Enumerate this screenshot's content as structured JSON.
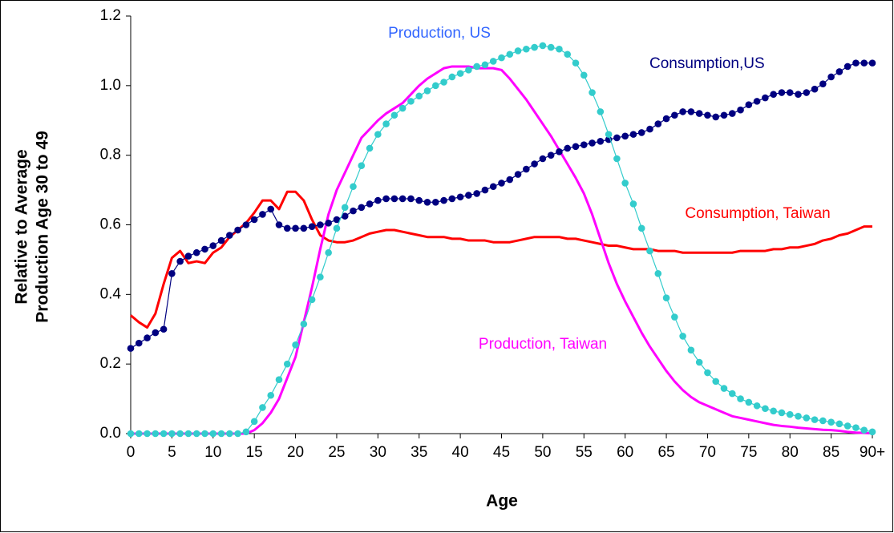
{
  "chart_data": {
    "type": "line",
    "y_label": [
      "Relative to Average",
      "Production Age 30 to 49"
    ],
    "x_label": "Age",
    "x": [
      0,
      1,
      2,
      3,
      4,
      5,
      6,
      7,
      8,
      9,
      10,
      11,
      12,
      13,
      14,
      15,
      16,
      17,
      18,
      19,
      20,
      21,
      22,
      23,
      24,
      25,
      26,
      27,
      28,
      29,
      30,
      31,
      32,
      33,
      34,
      35,
      36,
      37,
      38,
      39,
      40,
      41,
      42,
      43,
      44,
      45,
      46,
      47,
      48,
      49,
      50,
      51,
      52,
      53,
      54,
      55,
      56,
      57,
      58,
      59,
      60,
      61,
      62,
      63,
      64,
      65,
      66,
      67,
      68,
      69,
      70,
      71,
      72,
      73,
      74,
      75,
      76,
      77,
      78,
      79,
      80,
      81,
      82,
      83,
      84,
      85,
      86,
      87,
      88,
      89,
      90
    ],
    "xlim": [
      0,
      90
    ],
    "xticks": [
      0,
      5,
      10,
      15,
      20,
      25,
      30,
      35,
      40,
      45,
      50,
      55,
      60,
      65,
      70,
      75,
      80,
      85,
      {
        "value": 90,
        "label": "90+"
      }
    ],
    "ylim": [
      0,
      1.2
    ],
    "yticks": [
      {
        "value": 0,
        "label": "0.0"
      },
      0.2,
      0.4,
      0.6,
      0.8,
      {
        "value": 1,
        "label": "1.0"
      },
      1.2
    ],
    "series": [
      {
        "name": "Consumption,US",
        "color": "#000080",
        "label_color": "#000080",
        "markers": true,
        "width": 1.2,
        "values": [
          0.245,
          0.26,
          0.275,
          0.29,
          0.3,
          0.46,
          0.495,
          0.51,
          0.52,
          0.53,
          0.54,
          0.555,
          0.57,
          0.585,
          0.6,
          0.615,
          0.63,
          0.645,
          0.6,
          0.59,
          0.59,
          0.59,
          0.595,
          0.6,
          0.605,
          0.615,
          0.625,
          0.64,
          0.65,
          0.66,
          0.67,
          0.675,
          0.675,
          0.675,
          0.675,
          0.67,
          0.665,
          0.665,
          0.67,
          0.675,
          0.68,
          0.685,
          0.69,
          0.7,
          0.71,
          0.72,
          0.73,
          0.745,
          0.76,
          0.775,
          0.79,
          0.8,
          0.81,
          0.82,
          0.825,
          0.83,
          0.835,
          0.84,
          0.845,
          0.85,
          0.855,
          0.86,
          0.865,
          0.875,
          0.89,
          0.905,
          0.915,
          0.925,
          0.925,
          0.92,
          0.915,
          0.91,
          0.915,
          0.92,
          0.93,
          0.945,
          0.955,
          0.965,
          0.975,
          0.98,
          0.98,
          0.975,
          0.98,
          0.99,
          1.005,
          1.025,
          1.04,
          1.055,
          1.065,
          1.065,
          1.065
        ]
      },
      {
        "name": "Production, US",
        "color": "#33CCCC",
        "label_color": "#3366FF",
        "markers": true,
        "width": 1.2,
        "values": [
          0,
          0,
          0,
          0,
          0,
          0,
          0,
          0,
          0,
          0,
          0,
          0,
          0,
          0,
          0.005,
          0.035,
          0.075,
          0.11,
          0.155,
          0.2,
          0.255,
          0.315,
          0.385,
          0.45,
          0.52,
          0.59,
          0.65,
          0.71,
          0.77,
          0.82,
          0.86,
          0.89,
          0.915,
          0.935,
          0.955,
          0.97,
          0.985,
          1.0,
          1.01,
          1.025,
          1.035,
          1.045,
          1.055,
          1.06,
          1.07,
          1.08,
          1.09,
          1.1,
          1.105,
          1.11,
          1.115,
          1.11,
          1.105,
          1.09,
          1.065,
          1.03,
          0.98,
          0.925,
          0.86,
          0.79,
          0.72,
          0.66,
          0.59,
          0.525,
          0.46,
          0.39,
          0.335,
          0.28,
          0.24,
          0.205,
          0.175,
          0.15,
          0.13,
          0.115,
          0.1,
          0.09,
          0.08,
          0.072,
          0.065,
          0.06,
          0.055,
          0.05,
          0.045,
          0.04,
          0.037,
          0.033,
          0.028,
          0.022,
          0.017,
          0.01,
          0.005
        ]
      },
      {
        "name": "Consumption, Taiwan",
        "color": "#FF0000",
        "label_color": "#FF0000",
        "markers": false,
        "width": 3,
        "values": [
          0.34,
          0.32,
          0.305,
          0.345,
          0.43,
          0.505,
          0.525,
          0.49,
          0.495,
          0.49,
          0.52,
          0.535,
          0.565,
          0.585,
          0.605,
          0.635,
          0.67,
          0.67,
          0.645,
          0.695,
          0.695,
          0.67,
          0.615,
          0.57,
          0.555,
          0.55,
          0.55,
          0.555,
          0.565,
          0.575,
          0.58,
          0.585,
          0.585,
          0.58,
          0.575,
          0.57,
          0.565,
          0.565,
          0.565,
          0.56,
          0.56,
          0.555,
          0.555,
          0.555,
          0.55,
          0.55,
          0.55,
          0.555,
          0.56,
          0.565,
          0.565,
          0.565,
          0.565,
          0.56,
          0.56,
          0.555,
          0.55,
          0.545,
          0.54,
          0.54,
          0.535,
          0.53,
          0.53,
          0.53,
          0.525,
          0.525,
          0.525,
          0.52,
          0.52,
          0.52,
          0.52,
          0.52,
          0.52,
          0.52,
          0.525,
          0.525,
          0.525,
          0.525,
          0.53,
          0.53,
          0.535,
          0.535,
          0.54,
          0.545,
          0.555,
          0.56,
          0.57,
          0.575,
          0.585,
          0.595,
          0.595
        ]
      },
      {
        "name": "Production, Taiwan",
        "color": "#FF00FF",
        "label_color": "#FF00FF",
        "markers": false,
        "width": 3,
        "values": [
          0,
          0,
          0,
          0,
          0,
          0,
          0,
          0,
          0,
          0,
          0,
          0,
          0,
          0,
          0,
          0.01,
          0.03,
          0.06,
          0.1,
          0.16,
          0.22,
          0.32,
          0.42,
          0.53,
          0.63,
          0.7,
          0.75,
          0.8,
          0.85,
          0.875,
          0.9,
          0.92,
          0.935,
          0.95,
          0.975,
          1.0,
          1.02,
          1.035,
          1.05,
          1.055,
          1.055,
          1.055,
          1.05,
          1.05,
          1.05,
          1.045,
          1.02,
          0.99,
          0.96,
          0.925,
          0.89,
          0.855,
          0.815,
          0.775,
          0.735,
          0.69,
          0.63,
          0.56,
          0.49,
          0.43,
          0.38,
          0.335,
          0.29,
          0.25,
          0.215,
          0.18,
          0.15,
          0.125,
          0.105,
          0.09,
          0.08,
          0.07,
          0.06,
          0.05,
          0.045,
          0.04,
          0.035,
          0.03,
          0.025,
          0.022,
          0.02,
          0.017,
          0.015,
          0.013,
          0.011,
          0.01,
          0.008,
          0.005,
          0.003,
          0.002,
          0.001
        ]
      }
    ]
  }
}
